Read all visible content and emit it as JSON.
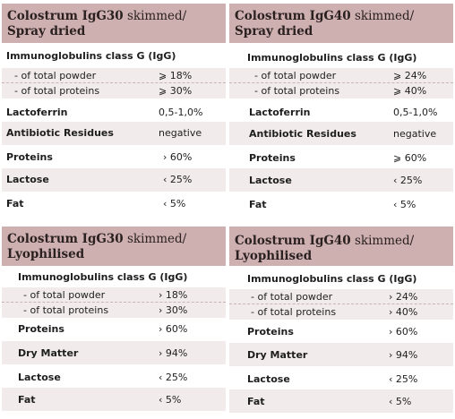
{
  "cards": [
    {
      "title_bold": "Colostrum IgG30",
      "title_rest": " skimmed/",
      "subtitle": "Spray dried",
      "ig_header": "Immunoglobulins class G (IgG)",
      "ig_rows": [
        {
          "label": "- of total powder",
          "value": "⩾ 18%"
        },
        {
          "label": "- of total proteins",
          "value": "⩾ 30%"
        }
      ],
      "rows": [
        {
          "label": "Lactoferrin",
          "value": "0,5-1,0%"
        },
        {
          "label": "Antibiotic Residues",
          "value": "negative"
        },
        {
          "label": "Proteins",
          "value": "› 60%"
        },
        {
          "label": "Lactose",
          "value": "‹ 25%"
        },
        {
          "label": "Fat",
          "value": "‹ 5%"
        }
      ]
    },
    {
      "title_bold": "Colostrum IgG40",
      "title_rest": " skimmed/",
      "subtitle": "Spray dried",
      "ig_header": "Immunoglobulins class G (IgG)",
      "ig_rows": [
        {
          "label": "- of total powder",
          "value": "⩾ 24%"
        },
        {
          "label": "- of total proteins",
          "value": "⩾ 40%"
        }
      ],
      "rows": [
        {
          "label": "Lactoferrin",
          "value": "0,5-1,0%"
        },
        {
          "label": "Antibiotic Residues",
          "value": "negative"
        },
        {
          "label": "Proteins",
          "value": "⩾ 60%"
        },
        {
          "label": "Lactose",
          "value": "‹ 25%"
        },
        {
          "label": "Fat",
          "value": "‹ 5%"
        }
      ]
    },
    {
      "title_bold": "Colostrum IgG30",
      "title_rest": " skimmed/",
      "subtitle": "Lyophilised",
      "ig_header": "Immunoglobulins class G (IgG)",
      "ig_rows": [
        {
          "label": "- of total powder",
          "value": "› 18%"
        },
        {
          "label": "- of total proteins",
          "value": "› 30%"
        }
      ],
      "rows": [
        {
          "label": "Proteins",
          "value": "› 60%"
        },
        {
          "label": "Dry Matter",
          "value": "› 94%"
        },
        {
          "label": "Lactose",
          "value": "‹ 25%"
        },
        {
          "label": "Fat",
          "value": "‹ 5%"
        }
      ]
    },
    {
      "title_bold": "Colostrum IgG40",
      "title_rest": " skimmed/",
      "subtitle": "Lyophilised",
      "ig_header": "Immunoglobulins class G (IgG)",
      "ig_rows": [
        {
          "label": "- of total powder",
          "value": "› 24%"
        },
        {
          "label": "- of total proteins",
          "value": "› 40%"
        }
      ],
      "rows": [
        {
          "label": "Proteins",
          "value": "› 60%"
        },
        {
          "label": "Dry Matter",
          "value": "› 94%"
        },
        {
          "label": "Lactose",
          "value": "‹ 25%"
        },
        {
          "label": "Fat",
          "value": "‹ 5%"
        }
      ]
    }
  ]
}
